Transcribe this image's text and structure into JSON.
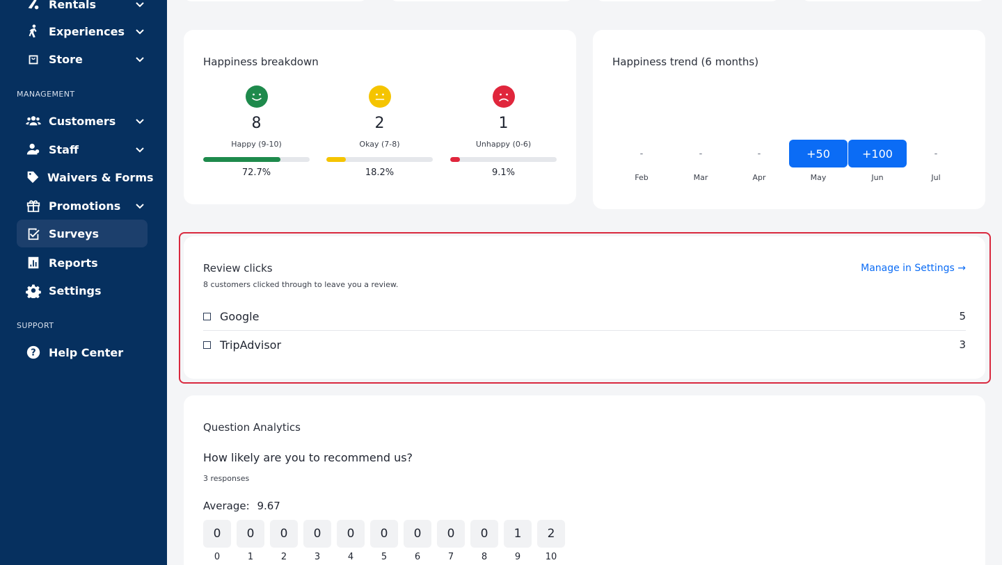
{
  "sidebar": {
    "items": [
      {
        "label": "Rentals",
        "icon": "rentals-icon",
        "chevron": true
      },
      {
        "label": "Experiences",
        "icon": "experiences-icon",
        "chevron": true
      },
      {
        "label": "Store",
        "icon": "store-icon",
        "chevron": true
      }
    ],
    "management_label": "MANAGEMENT",
    "management": [
      {
        "label": "Customers",
        "icon": "customers-icon",
        "chevron": true
      },
      {
        "label": "Staff",
        "icon": "staff-icon",
        "chevron": true
      },
      {
        "label": "Waivers & Forms",
        "icon": "waivers-icon",
        "chevron": false
      },
      {
        "label": "Promotions",
        "icon": "gift-icon",
        "chevron": true
      },
      {
        "label": "Surveys",
        "icon": "surveys-icon",
        "chevron": false,
        "active": true
      },
      {
        "label": "Reports",
        "icon": "reports-icon",
        "chevron": false
      },
      {
        "label": "Settings",
        "icon": "gear-icon",
        "chevron": false
      }
    ],
    "support_label": "SUPPORT",
    "support": [
      {
        "label": "Help Center",
        "icon": "help-icon",
        "chevron": false
      }
    ]
  },
  "happiness_breakdown": {
    "title": "Happiness breakdown",
    "groups": [
      {
        "count": "8",
        "label": "Happy (9-10)",
        "pct": "72.7%",
        "fraction": 0.727,
        "color": "#1e8a4c"
      },
      {
        "count": "2",
        "label": "Okay (7-8)",
        "pct": "18.2%",
        "fraction": 0.182,
        "color": "#f5c400"
      },
      {
        "count": "1",
        "label": "Unhappy (0-6)",
        "pct": "9.1%",
        "fraction": 0.091,
        "color": "#e0263c"
      }
    ]
  },
  "happiness_trend": {
    "title": "Happiness trend (6 months)",
    "months": [
      {
        "label": "Feb",
        "value": "-",
        "filled": false
      },
      {
        "label": "Mar",
        "value": "-",
        "filled": false
      },
      {
        "label": "Apr",
        "value": "-",
        "filled": false
      },
      {
        "label": "May",
        "value": "+50",
        "filled": true
      },
      {
        "label": "Jun",
        "value": "+100",
        "filled": true
      },
      {
        "label": "Jul",
        "value": "-",
        "filled": false
      }
    ]
  },
  "review_clicks": {
    "title": "Review clicks",
    "subtitle": "8 customers clicked through to leave you a review.",
    "manage_link": "Manage in Settings →",
    "rows": [
      {
        "name": "Google",
        "count": "5"
      },
      {
        "name": "TripAdvisor",
        "count": "3"
      }
    ]
  },
  "question_analytics": {
    "title": "Question Analytics",
    "question": "How likely are you to recommend us?",
    "responses": "3 responses",
    "average_label": "Average:",
    "average_value": "9.67",
    "scores": [
      {
        "score": "0",
        "count": "0"
      },
      {
        "score": "1",
        "count": "0"
      },
      {
        "score": "2",
        "count": "0"
      },
      {
        "score": "3",
        "count": "0"
      },
      {
        "score": "4",
        "count": "0"
      },
      {
        "score": "5",
        "count": "0"
      },
      {
        "score": "6",
        "count": "0"
      },
      {
        "score": "7",
        "count": "0"
      },
      {
        "score": "8",
        "count": "0"
      },
      {
        "score": "9",
        "count": "1"
      },
      {
        "score": "10",
        "count": "2"
      }
    ]
  }
}
